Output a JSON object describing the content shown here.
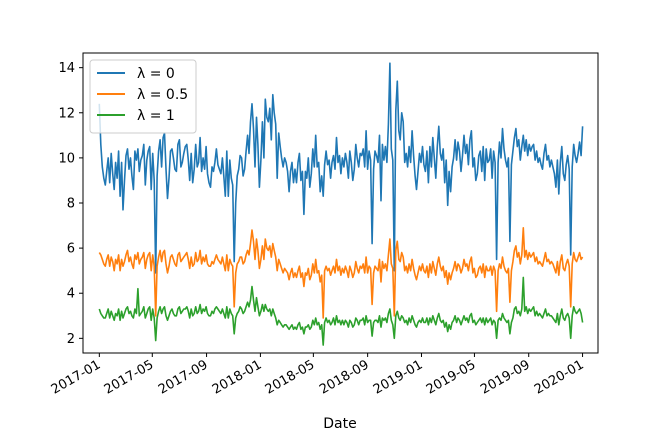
{
  "chart_data": {
    "type": "line",
    "title": "",
    "xlabel": "Date",
    "ylabel": "",
    "x_start": "2017-01-01",
    "x_end": "2020-01-01",
    "xlim": [
      "2016-11-25",
      "2020-02-05"
    ],
    "ylim": [
      1.35,
      14.65
    ],
    "grid": false,
    "legend_position": "top-left",
    "yticks": [
      2,
      4,
      6,
      8,
      10,
      12,
      14
    ],
    "xticks": [
      "2017-01",
      "2017-05",
      "2017-09",
      "2018-01",
      "2018-05",
      "2018-09",
      "2019-01",
      "2019-05",
      "2019-09",
      "2020-01"
    ],
    "series": [
      {
        "name": "λ = 0",
        "color": "#1f77b4",
        "values": [
          12.4,
          10.6,
          9.6,
          9.1,
          8.8,
          9.4,
          10.0,
          8.9,
          10.2,
          9.3,
          8.6,
          9.8,
          9.1,
          10.3,
          8.3,
          9.8,
          7.7,
          9.0,
          10.1,
          10.4,
          9.5,
          10.0,
          9.2,
          8.6,
          10.3,
          9.9,
          10.4,
          9.4,
          9.9,
          10.1,
          10.6,
          8.8,
          9.9,
          10.3,
          10.5,
          8.6,
          10.2,
          9.0,
          4.9,
          9.2,
          10.3,
          10.8,
          9.6,
          10.9,
          11.1,
          9.5,
          8.2,
          9.1,
          10.3,
          10.4,
          10.0,
          9.5,
          9.4,
          10.6,
          10.8,
          9.6,
          9.8,
          10.2,
          10.5,
          10.6,
          9.9,
          9.0,
          10.2,
          8.9,
          9.5,
          10.6,
          9.6,
          9.8,
          10.9,
          9.4,
          10.0,
          9.5,
          10.5,
          9.3,
          8.9,
          8.7,
          9.6,
          9.4,
          9.8,
          10.4,
          9.7,
          9.5,
          9.3,
          10.0,
          9.2,
          8.3,
          10.3,
          8.3,
          9.9,
          9.1,
          8.8,
          5.4,
          8.0,
          9.2,
          9.5,
          10.1,
          10.0,
          9.2,
          9.5,
          10.3,
          11.0,
          10.2,
          11.6,
          12.4,
          11.3,
          9.6,
          11.8,
          10.6,
          8.7,
          9.9,
          11.6,
          10.0,
          12.6,
          11.8,
          11.6,
          12.2,
          10.8,
          12.8,
          12.0,
          11.5,
          9.1,
          11.1,
          10.5,
          10.0,
          9.6,
          10.0,
          9.8,
          9.4,
          8.5,
          9.4,
          9.8,
          8.9,
          9.5,
          8.9,
          9.8,
          10.2,
          9.0,
          9.4,
          7.5,
          9.4,
          9.1,
          10.0,
          8.7,
          9.3,
          10.4,
          9.6,
          11.0,
          9.6,
          9.8,
          8.5,
          9.2,
          8.3,
          9.7,
          10.3,
          9.7,
          9.9,
          9.1,
          9.8,
          10.1,
          9.5,
          10.9,
          9.8,
          10.1,
          9.3,
          10.0,
          9.6,
          10.2,
          9.8,
          9.1,
          10.3,
          9.8,
          9.0,
          9.5,
          10.6,
          10.0,
          9.6,
          10.2,
          10.1,
          10.4,
          9.6,
          11.2,
          9.5,
          10.3,
          9.9,
          6.2,
          9.5,
          10.3,
          10.1,
          9.8,
          11.0,
          8.1,
          10.6,
          9.9,
          10.5,
          9.8,
          11.5,
          14.2,
          10.4,
          9.9,
          5.0,
          12.1,
          13.4,
          11.2,
          10.8,
          12.0,
          11.6,
          9.8,
          10.2,
          9.6,
          10.5,
          9.8,
          11.2,
          10.1,
          9.2,
          8.6,
          9.4,
          10.2,
          9.8,
          10.5,
          9.7,
          9.4,
          10.3,
          8.9,
          10.5,
          9.6,
          10.9,
          10.0,
          9.1,
          10.5,
          11.4,
          10.2,
          9.9,
          10.4,
          8.9,
          9.9,
          7.9,
          9.4,
          8.5,
          9.6,
          10.0,
          10.8,
          9.9,
          10.7,
          10.3,
          9.4,
          10.1,
          11.0,
          10.2,
          10.6,
          9.7,
          10.8,
          11.2,
          9.6,
          10.0,
          9.0,
          9.3,
          10.1,
          10.3,
          9.4,
          10.5,
          9.0,
          10.4,
          9.8,
          9.9,
          10.4,
          9.1,
          10.3,
          9.8,
          5.5,
          9.8,
          10.7,
          10.0,
          11.3,
          10.4,
          9.9,
          9.6,
          10.0,
          6.3,
          9.7,
          10.3,
          10.9,
          11.3,
          10.5,
          10.8,
          9.9,
          10.5,
          11.0,
          10.3,
          10.8,
          10.1,
          10.6,
          10.3,
          10.5,
          10.6,
          9.9,
          10.3,
          9.8,
          10.0,
          9.7,
          9.5,
          10.2,
          10.6,
          9.9,
          10.1,
          9.6,
          9.9,
          9.6,
          9.3,
          8.7,
          9.9,
          8.4,
          9.8,
          10.5,
          9.3,
          9.0,
          9.7,
          10.1,
          9.5,
          5.7,
          9.6,
          10.6,
          10.1,
          9.8,
          10.2,
          10.7,
          10.1,
          11.4
        ]
      },
      {
        "name": "λ = 0.5",
        "color": "#ff7f0e",
        "values": [
          5.8,
          5.7,
          5.5,
          5.3,
          5.2,
          5.5,
          5.7,
          5.2,
          5.6,
          5.4,
          5.0,
          5.5,
          5.3,
          5.7,
          5.0,
          5.5,
          5.2,
          5.4,
          5.7,
          5.9,
          5.4,
          5.6,
          5.3,
          5.1,
          5.7,
          5.5,
          5.8,
          5.3,
          5.5,
          5.6,
          5.8,
          5.1,
          5.5,
          5.7,
          5.8,
          5.0,
          5.7,
          5.2,
          3.0,
          5.2,
          5.6,
          5.9,
          5.4,
          5.8,
          5.9,
          5.3,
          4.9,
          5.2,
          5.6,
          5.7,
          5.5,
          5.3,
          5.2,
          5.7,
          5.8,
          5.4,
          5.5,
          5.6,
          5.7,
          5.8,
          5.5,
          5.1,
          5.6,
          5.2,
          5.3,
          5.8,
          5.4,
          5.5,
          5.9,
          5.3,
          5.6,
          5.4,
          5.7,
          5.3,
          5.2,
          5.2,
          5.4,
          5.3,
          5.5,
          5.7,
          5.5,
          5.4,
          5.3,
          5.6,
          5.3,
          5.0,
          5.7,
          5.0,
          5.5,
          5.3,
          5.2,
          3.4,
          4.9,
          5.3,
          5.4,
          5.6,
          5.6,
          5.3,
          5.4,
          5.7,
          5.9,
          5.7,
          6.2,
          6.8,
          6.3,
          5.5,
          6.4,
          5.9,
          5.1,
          5.5,
          6.1,
          5.5,
          6.4,
          6.0,
          5.9,
          6.1,
          5.6,
          6.2,
          5.9,
          5.6,
          5.0,
          5.5,
          5.3,
          5.1,
          4.9,
          5.1,
          5.0,
          4.9,
          4.6,
          4.9,
          5.1,
          4.7,
          4.9,
          4.7,
          5.0,
          5.2,
          4.7,
          4.9,
          4.3,
          4.9,
          4.8,
          5.1,
          4.6,
          4.8,
          5.3,
          4.9,
          5.5,
          4.9,
          5.0,
          4.5,
          4.8,
          2.9,
          5.0,
          5.2,
          5.0,
          5.1,
          4.8,
          5.0,
          5.2,
          4.9,
          5.5,
          5.0,
          5.2,
          4.8,
          5.1,
          4.9,
          5.2,
          5.0,
          4.7,
          5.2,
          5.0,
          4.7,
          4.9,
          5.4,
          5.1,
          4.9,
          5.2,
          5.1,
          5.3,
          4.9,
          5.6,
          4.9,
          5.2,
          5.1,
          3.5,
          4.9,
          5.2,
          5.1,
          5.0,
          5.5,
          4.5,
          5.4,
          5.1,
          5.3,
          5.0,
          5.7,
          6.4,
          5.3,
          5.1,
          3.0,
          5.9,
          6.3,
          5.5,
          5.4,
          5.8,
          5.6,
          5.0,
          5.2,
          4.9,
          5.3,
          5.0,
          5.5,
          5.1,
          4.8,
          4.6,
          4.9,
          5.2,
          5.0,
          5.3,
          5.0,
          4.9,
          5.2,
          4.7,
          5.3,
          4.9,
          5.4,
          5.1,
          4.8,
          5.3,
          5.6,
          5.2,
          5.0,
          5.2,
          4.7,
          5.0,
          4.4,
          4.9,
          4.6,
          4.9,
          5.1,
          5.4,
          5.0,
          5.3,
          5.2,
          4.9,
          5.1,
          5.5,
          5.2,
          5.3,
          5.0,
          5.4,
          5.6,
          4.9,
          5.1,
          4.7,
          4.8,
          5.1,
          5.2,
          4.9,
          5.3,
          4.7,
          5.2,
          5.0,
          5.0,
          5.2,
          4.8,
          5.2,
          5.0,
          3.2,
          5.0,
          5.3,
          5.1,
          5.6,
          5.2,
          5.0,
          4.9,
          5.1,
          3.6,
          5.0,
          5.4,
          5.9,
          6.1,
          5.6,
          5.8,
          5.3,
          5.7,
          6.9,
          5.6,
          5.9,
          5.5,
          5.8,
          5.6,
          5.7,
          5.8,
          5.4,
          5.6,
          5.3,
          5.4,
          5.3,
          5.2,
          5.5,
          5.8,
          5.4,
          5.5,
          5.3,
          5.4,
          5.3,
          5.1,
          4.9,
          5.4,
          4.8,
          5.4,
          5.7,
          5.1,
          5.0,
          5.3,
          5.5,
          5.2,
          3.4,
          5.3,
          5.8,
          5.5,
          5.4,
          5.6,
          5.8,
          5.5,
          5.6
        ]
      },
      {
        "name": "λ = 1",
        "color": "#2ca02c",
        "values": [
          3.3,
          3.1,
          3.0,
          2.9,
          2.9,
          3.1,
          3.3,
          2.9,
          3.2,
          3.0,
          2.8,
          3.1,
          3.0,
          3.3,
          2.8,
          3.2,
          2.9,
          3.1,
          3.3,
          3.4,
          3.1,
          3.2,
          3.0,
          2.9,
          3.3,
          3.1,
          4.2,
          3.0,
          3.1,
          3.2,
          3.4,
          2.9,
          3.1,
          3.3,
          3.4,
          2.8,
          3.3,
          2.9,
          1.9,
          2.9,
          3.2,
          3.4,
          3.1,
          3.3,
          3.4,
          3.0,
          2.8,
          3.0,
          3.2,
          3.3,
          3.1,
          3.0,
          3.0,
          3.3,
          3.4,
          3.1,
          3.2,
          3.3,
          3.3,
          3.4,
          3.2,
          2.9,
          3.3,
          3.0,
          3.1,
          3.4,
          3.1,
          3.2,
          3.5,
          3.1,
          3.3,
          3.2,
          3.4,
          3.1,
          3.0,
          3.0,
          3.2,
          3.1,
          3.3,
          3.4,
          3.3,
          3.2,
          3.1,
          3.3,
          3.1,
          2.9,
          3.4,
          2.9,
          3.3,
          3.1,
          3.0,
          2.2,
          2.9,
          3.1,
          3.2,
          3.4,
          3.3,
          3.1,
          3.2,
          3.4,
          3.6,
          3.4,
          3.7,
          4.3,
          3.7,
          3.2,
          3.8,
          3.4,
          3.0,
          3.2,
          3.5,
          3.2,
          3.5,
          3.3,
          3.2,
          3.3,
          3.0,
          3.3,
          3.1,
          2.9,
          2.6,
          2.8,
          2.7,
          2.6,
          2.5,
          2.6,
          2.6,
          2.5,
          2.4,
          2.5,
          2.6,
          2.4,
          2.5,
          2.4,
          2.6,
          2.7,
          2.4,
          2.5,
          2.2,
          2.5,
          2.5,
          2.6,
          2.4,
          2.5,
          2.8,
          2.6,
          2.9,
          2.6,
          2.7,
          2.4,
          2.6,
          1.7,
          2.7,
          2.9,
          2.7,
          2.8,
          2.6,
          2.7,
          2.9,
          2.6,
          3.0,
          2.7,
          2.8,
          2.6,
          2.8,
          2.6,
          2.8,
          2.7,
          2.5,
          2.8,
          2.7,
          2.5,
          2.6,
          2.9,
          2.8,
          2.6,
          2.8,
          2.8,
          2.9,
          2.6,
          3.0,
          2.7,
          2.8,
          2.8,
          2.1,
          2.7,
          2.8,
          2.8,
          2.7,
          3.0,
          2.5,
          2.9,
          2.8,
          2.9,
          2.7,
          3.1,
          3.3,
          2.8,
          2.6,
          2.0,
          3.0,
          3.2,
          2.9,
          2.8,
          3.0,
          2.9,
          2.7,
          2.8,
          2.6,
          2.9,
          2.7,
          3.0,
          2.8,
          2.6,
          2.5,
          2.7,
          2.8,
          2.7,
          2.9,
          2.7,
          2.7,
          2.9,
          2.6,
          2.9,
          2.7,
          3.0,
          2.8,
          2.6,
          2.9,
          3.1,
          2.8,
          2.7,
          2.8,
          2.5,
          2.7,
          2.3,
          2.6,
          2.4,
          2.7,
          2.8,
          3.0,
          2.7,
          2.9,
          2.8,
          2.6,
          2.8,
          3.0,
          2.8,
          2.9,
          2.7,
          3.0,
          3.1,
          2.7,
          2.8,
          2.6,
          2.7,
          2.8,
          2.9,
          2.7,
          2.9,
          2.6,
          2.9,
          2.7,
          2.8,
          2.9,
          2.6,
          2.8,
          2.7,
          2.0,
          2.8,
          2.9,
          2.8,
          3.1,
          2.9,
          2.8,
          2.7,
          2.8,
          2.2,
          2.7,
          2.9,
          3.3,
          3.4,
          3.1,
          3.2,
          3.0,
          3.3,
          4.7,
          3.2,
          3.4,
          3.1,
          3.3,
          3.2,
          3.3,
          3.4,
          3.0,
          3.2,
          3.0,
          3.1,
          3.0,
          2.9,
          3.1,
          3.3,
          3.0,
          3.1,
          3.0,
          3.0,
          2.9,
          2.8,
          2.7,
          3.1,
          2.6,
          3.0,
          3.3,
          2.9,
          2.8,
          3.0,
          3.1,
          2.9,
          2.0,
          3.0,
          3.4,
          3.2,
          3.1,
          3.2,
          3.3,
          3.1,
          2.7
        ]
      }
    ]
  }
}
